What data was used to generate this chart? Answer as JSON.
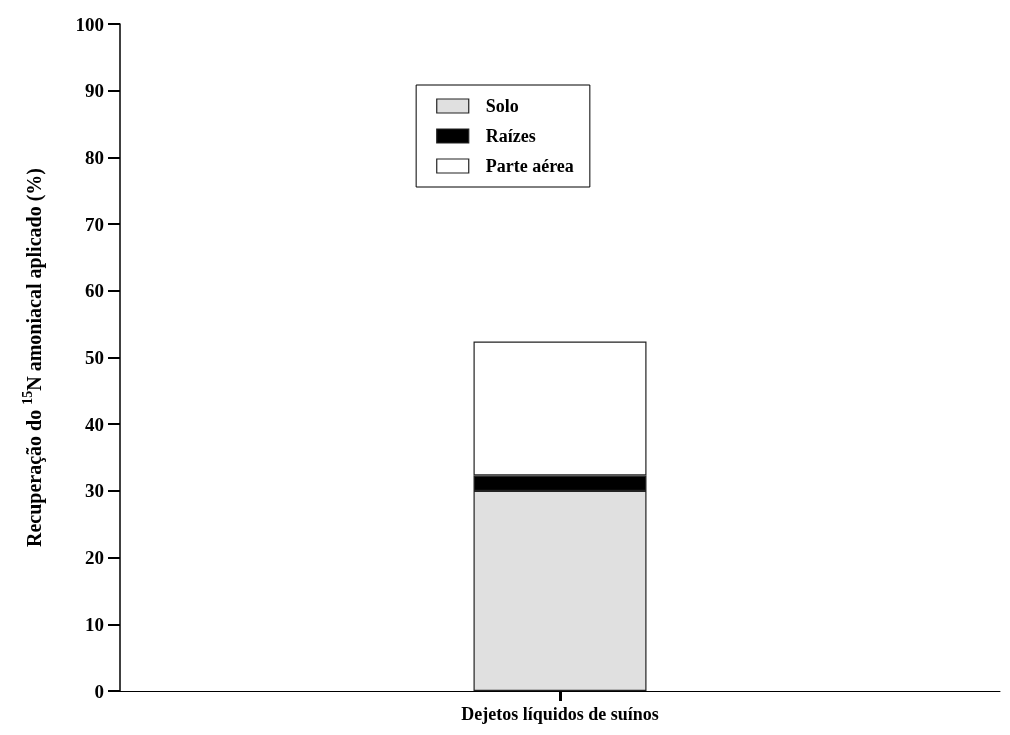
{
  "chart_data": {
    "type": "bar",
    "stacked": true,
    "ylabel": "Recuperação do $^{15}$N amoniacal aplicado (%)",
    "categories": [
      "Dejetos líquidos de suínos"
    ],
    "series": [
      {
        "name": "Solo",
        "color": "#e0e0e0",
        "values": [
          30.0
        ]
      },
      {
        "name": "Raízes",
        "color": "#000000",
        "values": [
          2.3
        ]
      },
      {
        "name": "Parte aérea",
        "color": "#ffffff",
        "values": [
          20.1
        ]
      }
    ],
    "ylim": [
      0,
      100
    ],
    "yticks": [
      0,
      10,
      20,
      30,
      40,
      50,
      60,
      70,
      80,
      90,
      100
    ],
    "grid": false,
    "legend": "top"
  }
}
